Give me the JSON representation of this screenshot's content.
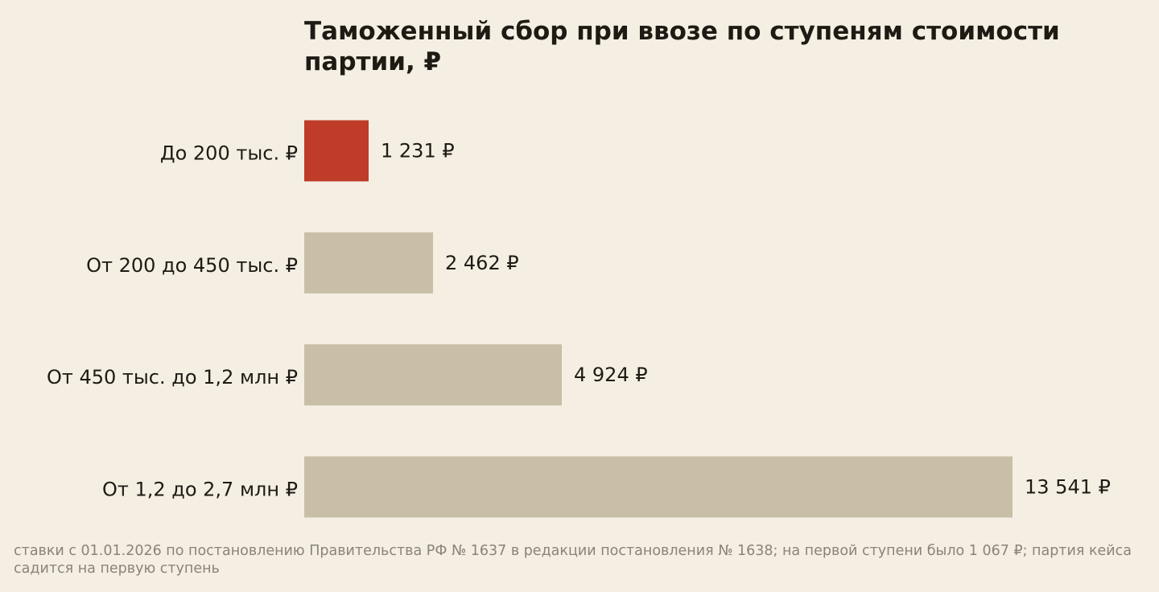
{
  "chart_data": {
    "type": "bar",
    "orientation": "horizontal",
    "title": "Таможенный сбор при ввозе по ступеням стоимости партии, ₽",
    "categories": [
      "До 200 тыс. ₽",
      "От 200 до 450 тыс. ₽",
      "От 450 тыс. до 1,2 млн ₽",
      "От 1,2 до 2,7 млн ₽"
    ],
    "values": [
      1231,
      2462,
      4924,
      13541
    ],
    "value_labels": [
      "1 231 ₽",
      "2 462 ₽",
      "4 924 ₽",
      "13 541 ₽"
    ],
    "highlight_index": 0,
    "colors": {
      "highlight": "#be3c28",
      "default": "#c9bfa7",
      "background": "#f5efe3"
    },
    "xlim": [
      0,
      13541
    ],
    "grid": false,
    "legend": "none"
  },
  "footnote": "ставки с 01.01.2026 по постановлению Правительства РФ № 1637 в редакции постановления № 1638; на первой ступени было 1 067 ₽; партия кейса садится на первую ступень"
}
